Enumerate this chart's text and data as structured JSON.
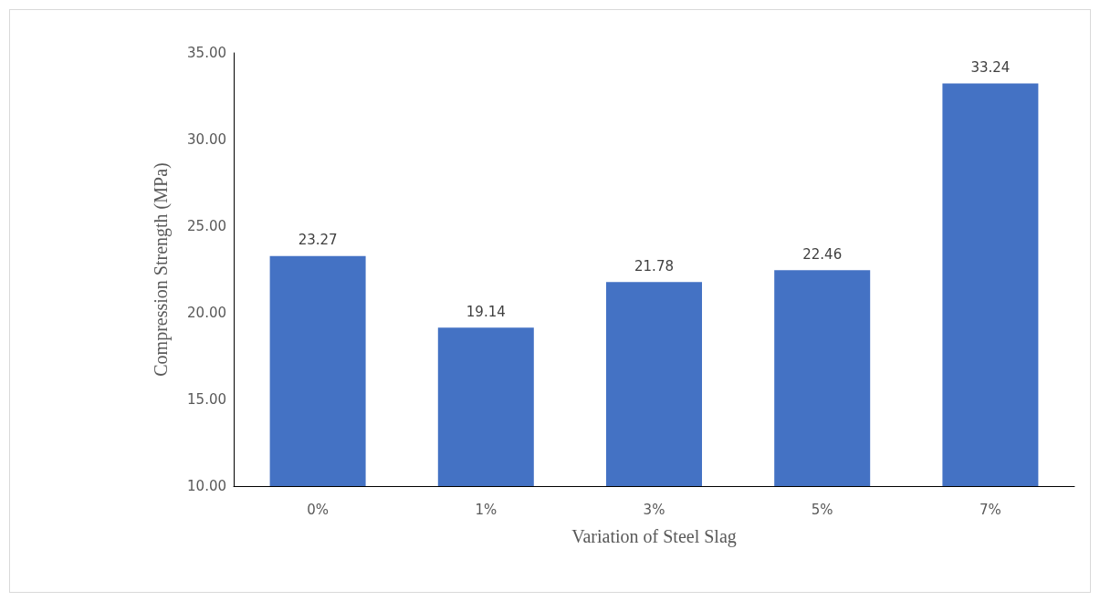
{
  "chart_data": {
    "type": "bar",
    "xlabel": "Variation of Steel Slag",
    "ylabel": "Compression Strength (MPa)",
    "categories": [
      "0%",
      "1%",
      "3%",
      "5%",
      "7%"
    ],
    "values": [
      23.27,
      19.14,
      21.78,
      22.46,
      33.24
    ],
    "color": "#4472c4",
    "ylim": [
      10,
      35
    ],
    "yticks": [
      {
        "value": 10,
        "label": "10.00"
      },
      {
        "value": 15,
        "label": "15.00"
      },
      {
        "value": 20,
        "label": "20.00"
      },
      {
        "value": 25,
        "label": "25.00"
      },
      {
        "value": 30,
        "label": "30.00"
      },
      {
        "value": 35,
        "label": "35.00"
      }
    ],
    "grid": false,
    "data_labels": true
  }
}
